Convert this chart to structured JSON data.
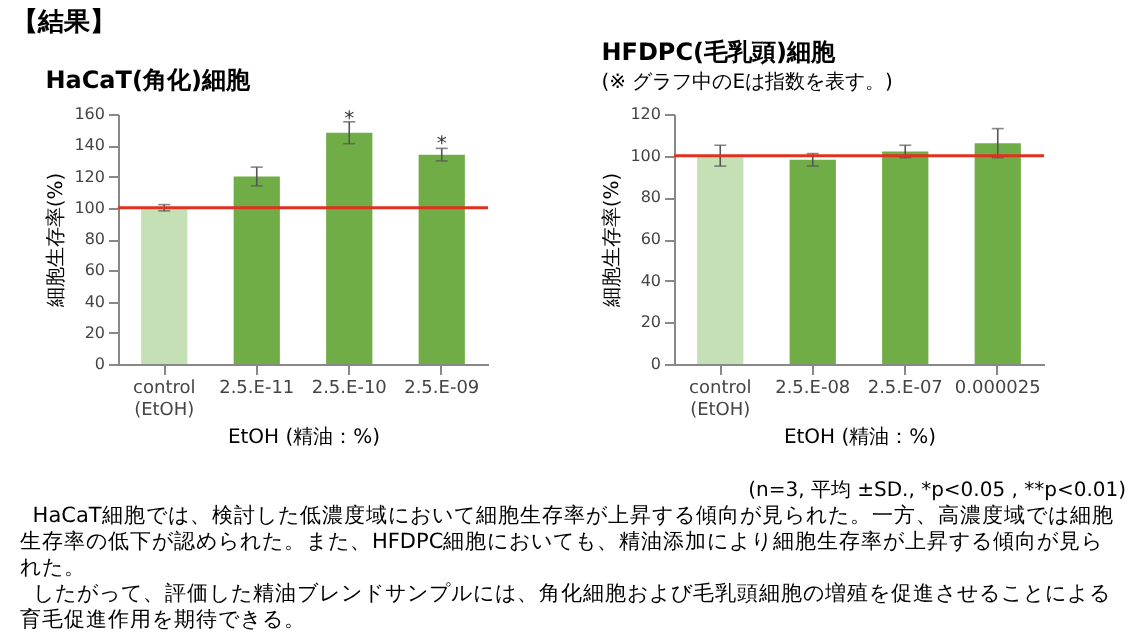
{
  "chart_data": [
    {
      "type": "bar",
      "title": "HaCaT(角化)細胞",
      "ylabel": "細胞生存率(%)",
      "xlabel": "EtOH (精油：%)",
      "categories": [
        "control (EtOH)",
        "2.5.E-11",
        "2.5.E-10",
        "2.5.E-09"
      ],
      "values": [
        100,
        120,
        148,
        134
      ],
      "errors": [
        2,
        6,
        7,
        4
      ],
      "colors": [
        "#c5e0b4",
        "#70ad47",
        "#70ad47",
        "#70ad47"
      ],
      "ylim": [
        0,
        160
      ],
      "yticks": [
        0,
        20,
        40,
        60,
        80,
        100,
        120,
        140,
        160
      ],
      "ref_lines": [
        {
          "axis": "y",
          "value": 100,
          "color": "#e03020"
        }
      ],
      "annotations": [
        "【結果】",
        {
          "text": "*",
          "x": "2.5.E-10",
          "y": 157
        },
        {
          "text": "*",
          "x": "2.5.E-09",
          "y": 141
        }
      ]
    },
    {
      "type": "bar",
      "title": "HFDPC(毛乳頭)細胞",
      "subtitle": "(※ グラフ中のEは指数を表す。)",
      "ylabel": "細胞生存率(%)",
      "xlabel": "EtOH (精油：%)",
      "categories": [
        "control (EtOH)",
        "2.5.E-08",
        "2.5.E-07",
        "0.000025"
      ],
      "values": [
        100,
        98,
        102,
        106
      ],
      "errors": [
        5,
        3,
        3,
        7
      ],
      "colors": [
        "#c5e0b4",
        "#70ad47",
        "#70ad47",
        "#70ad47"
      ],
      "ylim": [
        0,
        120
      ],
      "yticks": [
        0,
        20,
        40,
        60,
        80,
        100,
        120
      ],
      "ref_lines": [
        {
          "axis": "y",
          "value": 100,
          "color": "#e03020"
        }
      ],
      "annotations": [
        "(n=3, 平均 ±SD., *p<0.05 , **p<0.01)",
        "HaCaT細胞では、検討した低濃度域において細胞生存率が上昇する傾向が見られた。一方、高濃度域では細胞生存率の低下が認められた。また、HFDPC細胞においても、精油添加により細胞生存率が上昇する傾向が見られた。",
        "したがって、評価した精油ブレンドサンプルには、角化細胞および毛乳頭細胞の増殖を促進させることによる育毛促進作用を期待できる。"
      ]
    }
  ]
}
